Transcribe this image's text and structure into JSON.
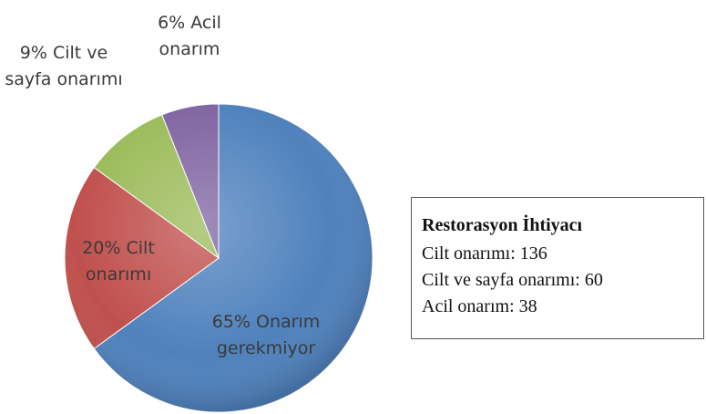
{
  "chart_data": {
    "type": "pie",
    "categories": [
      "Onarım gerekmiyor",
      "Cilt onarımı",
      "Cilt ve sayfa onarımı",
      "Acil onarım"
    ],
    "values": [
      65,
      20,
      9,
      6
    ],
    "value_labels": [
      "65%",
      "20%",
      "9%",
      "6%"
    ],
    "colors": [
      "#4f81bd",
      "#c0504d",
      "#9bbb59",
      "#8064a2"
    ],
    "annotation_title": "Restorasyon İhtiyacı",
    "annotations": [
      "Cilt onarımı: 136",
      "Cilt ve sayfa onarımı: 60",
      "Acil onarım: 38"
    ]
  }
}
